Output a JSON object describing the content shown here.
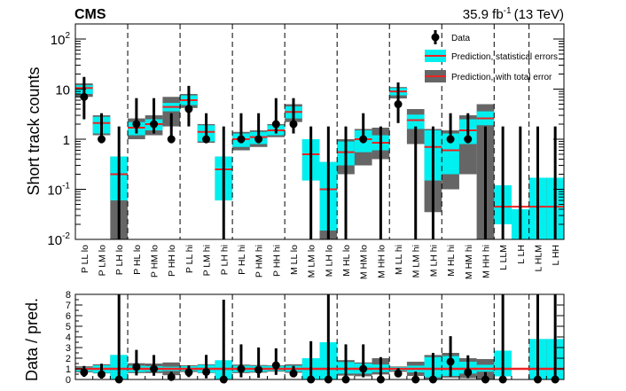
{
  "header": {
    "experiment": "CMS",
    "lumi_value": "35.9 fb",
    "lumi_exponent": "-1",
    "lumi_energy": "(13 TeV)"
  },
  "legend": {
    "data_label": "Data",
    "stat_label": "Prediction, statistical errors",
    "total_label": "Prediction, with total error"
  },
  "colors": {
    "stat_band": "#00f0f0",
    "syst_band": "#666666",
    "prediction_line": "#ee2222",
    "data_marker": "#000000",
    "ratio_line": "#ee2222"
  },
  "chart_data": [
    {
      "type": "bar",
      "panel": "top",
      "ylabel": "Short track counts",
      "yscale": "log",
      "ylim": [
        0.01,
        200
      ],
      "ytick_labels": [
        "10^{-2}",
        "10^{-1}",
        "1",
        "10",
        "10^{2}"
      ],
      "categories": [
        "P LL lo",
        "P LM lo",
        "P LH lo",
        "P HL lo",
        "P HM lo",
        "P HH lo",
        "P LL hi",
        "P LM hi",
        "P LH hi",
        "P HL hi",
        "P HM hi",
        "P HH hi",
        "M LL lo",
        "M LM lo",
        "M LH lo",
        "M HL lo",
        "M HM lo",
        "M HH lo",
        "M LL hi",
        "M LM hi",
        "M LH hi",
        "M HL hi",
        "M HM hi",
        "M HH hi",
        "L LLM",
        "L LH",
        "L HLM",
        "L HH"
      ],
      "group_boundaries_after_index": [
        2,
        5,
        8,
        11,
        14,
        17,
        20,
        23,
        25
      ],
      "prediction": [
        10.5,
        2.1,
        0.2,
        1.7,
        2.0,
        4.4,
        6.0,
        1.4,
        0.25,
        1.0,
        1.1,
        1.5,
        3.5,
        0.5,
        0.1,
        0.55,
        1.0,
        0.85,
        9.0,
        2.4,
        0.7,
        0.6,
        1.5,
        2.6,
        0.045,
        0.045,
        0.045,
        0.045
      ],
      "stat_low": [
        8.0,
        1.3,
        0.06,
        1.2,
        1.5,
        3.6,
        4.8,
        0.9,
        0.06,
        0.7,
        0.8,
        1.2,
        2.6,
        0.15,
        0.015,
        0.3,
        0.55,
        0.6,
        7.5,
        1.6,
        0.15,
        0.2,
        0.8,
        1.9,
        0.02,
        0.01,
        0.01,
        0.01
      ],
      "stat_high": [
        12.0,
        2.8,
        0.45,
        2.2,
        2.5,
        5.3,
        7.5,
        1.9,
        0.45,
        1.3,
        1.4,
        1.9,
        4.5,
        1.0,
        0.35,
        0.9,
        1.5,
        1.2,
        10.5,
        3.1,
        1.5,
        1.3,
        2.5,
        3.6,
        0.12,
        0.04,
        0.17,
        0.17
      ],
      "syst_low": [
        7.0,
        1.2,
        0.01,
        1.0,
        1.2,
        1.8,
        4.2,
        0.85,
        0.06,
        0.6,
        0.7,
        1.1,
        2.2,
        0.15,
        0.01,
        0.2,
        0.3,
        0.4,
        6.5,
        0.8,
        0.035,
        0.1,
        0.2,
        0.01,
        0.02,
        0.01,
        0.01,
        0.01
      ],
      "syst_high": [
        13.0,
        3.0,
        0.45,
        2.6,
        3.0,
        7.0,
        8.0,
        2.0,
        0.45,
        1.4,
        1.5,
        2.0,
        5.0,
        1.0,
        0.35,
        1.0,
        1.6,
        1.7,
        11.0,
        4.0,
        1.6,
        1.5,
        3.0,
        5.0,
        0.12,
        0.04,
        0.17,
        0.17
      ],
      "data": [
        7,
        1,
        0,
        2,
        2,
        1,
        4,
        1,
        0,
        1,
        1,
        2,
        2,
        0,
        0,
        0,
        1,
        0,
        5,
        0,
        0,
        1,
        1,
        0,
        0,
        0,
        0,
        0
      ],
      "data_err_low": [
        4.5,
        0.17,
        0,
        0.7,
        0.7,
        0.17,
        2.2,
        0.17,
        0,
        0.17,
        0.17,
        0.7,
        0.7,
        0,
        0,
        0,
        0.17,
        0,
        2.9,
        0,
        0,
        0.17,
        0.17,
        0,
        0,
        0,
        0,
        0
      ],
      "data_err_high": [
        10.5,
        2.3,
        1.8,
        4.6,
        4.6,
        2.3,
        7.6,
        2.3,
        1.8,
        2.3,
        2.3,
        4.6,
        4.6,
        1.8,
        1.8,
        1.8,
        2.3,
        1.8,
        8.6,
        1.8,
        1.8,
        2.3,
        2.3,
        1.8,
        1.8,
        1.8,
        1.8,
        1.8
      ]
    },
    {
      "type": "bar",
      "panel": "ratio",
      "ylabel": "Data / pred.",
      "ylim": [
        0,
        8
      ],
      "ytick_labels": [
        "0",
        "1",
        "2",
        "3",
        "4",
        "5",
        "6",
        "7",
        "8"
      ],
      "reference_line": 1,
      "ratio": [
        0.67,
        0.48,
        0,
        1.18,
        1.0,
        0.23,
        0.67,
        0.71,
        0,
        1.0,
        0.91,
        1.33,
        0.57,
        0,
        0,
        0,
        1.0,
        0,
        0.56,
        0,
        0,
        1.67,
        0.67,
        0,
        0,
        0,
        0,
        0
      ],
      "ratio_err_low": [
        0.43,
        0.4,
        0,
        0.8,
        0.65,
        0.2,
        0.45,
        0.6,
        0,
        0.8,
        0.75,
        0.9,
        0.37,
        0,
        0,
        0,
        0.8,
        0,
        0.3,
        0,
        0,
        1.4,
        0.55,
        0,
        0,
        0,
        0,
        0
      ],
      "ratio_err_high": [
        0.6,
        1.0,
        8,
        1.6,
        1.3,
        0.5,
        0.65,
        1.6,
        7.5,
        2.3,
        2.1,
        1.6,
        0.7,
        3.6,
        8,
        3.3,
        2.3,
        2.1,
        0.5,
        0.75,
        2.5,
        2.4,
        1.6,
        0.7,
        8,
        0,
        8,
        8
      ],
      "band_stat_low": [
        0.76,
        0.62,
        0,
        0.7,
        0.75,
        0.8,
        0.8,
        0.64,
        0,
        0.7,
        0.73,
        0.8,
        0.74,
        0,
        0,
        0.55,
        0.55,
        0.7,
        0.83,
        0.67,
        0.2,
        0.33,
        0.55,
        0.73,
        0.3,
        0,
        0,
        0
      ],
      "band_stat_high": [
        1.14,
        1.33,
        2.3,
        1.29,
        1.25,
        1.2,
        1.25,
        1.36,
        1.8,
        1.3,
        1.27,
        1.27,
        1.29,
        2.0,
        3.5,
        1.64,
        1.5,
        1.41,
        1.17,
        1.3,
        2.1,
        2.2,
        1.67,
        1.38,
        2.7,
        0,
        3.8,
        3.8
      ],
      "band_syst_low": [
        0.67,
        0.57,
        0,
        0.6,
        0.6,
        0.4,
        0.7,
        0.6,
        0,
        0.6,
        0.64,
        0.73,
        0.63,
        0,
        0,
        0.36,
        0.3,
        0.47,
        0.72,
        0.33,
        0.05,
        0.17,
        0.13,
        0,
        0.3,
        0,
        0,
        0
      ],
      "band_syst_high": [
        1.24,
        1.43,
        2.3,
        1.53,
        1.5,
        1.6,
        1.33,
        1.43,
        1.8,
        1.4,
        1.36,
        1.33,
        1.43,
        2.0,
        3.5,
        1.82,
        1.6,
        2.0,
        1.22,
        1.67,
        2.3,
        2.5,
        2.0,
        1.92,
        2.7,
        0,
        3.8,
        3.8
      ]
    }
  ]
}
